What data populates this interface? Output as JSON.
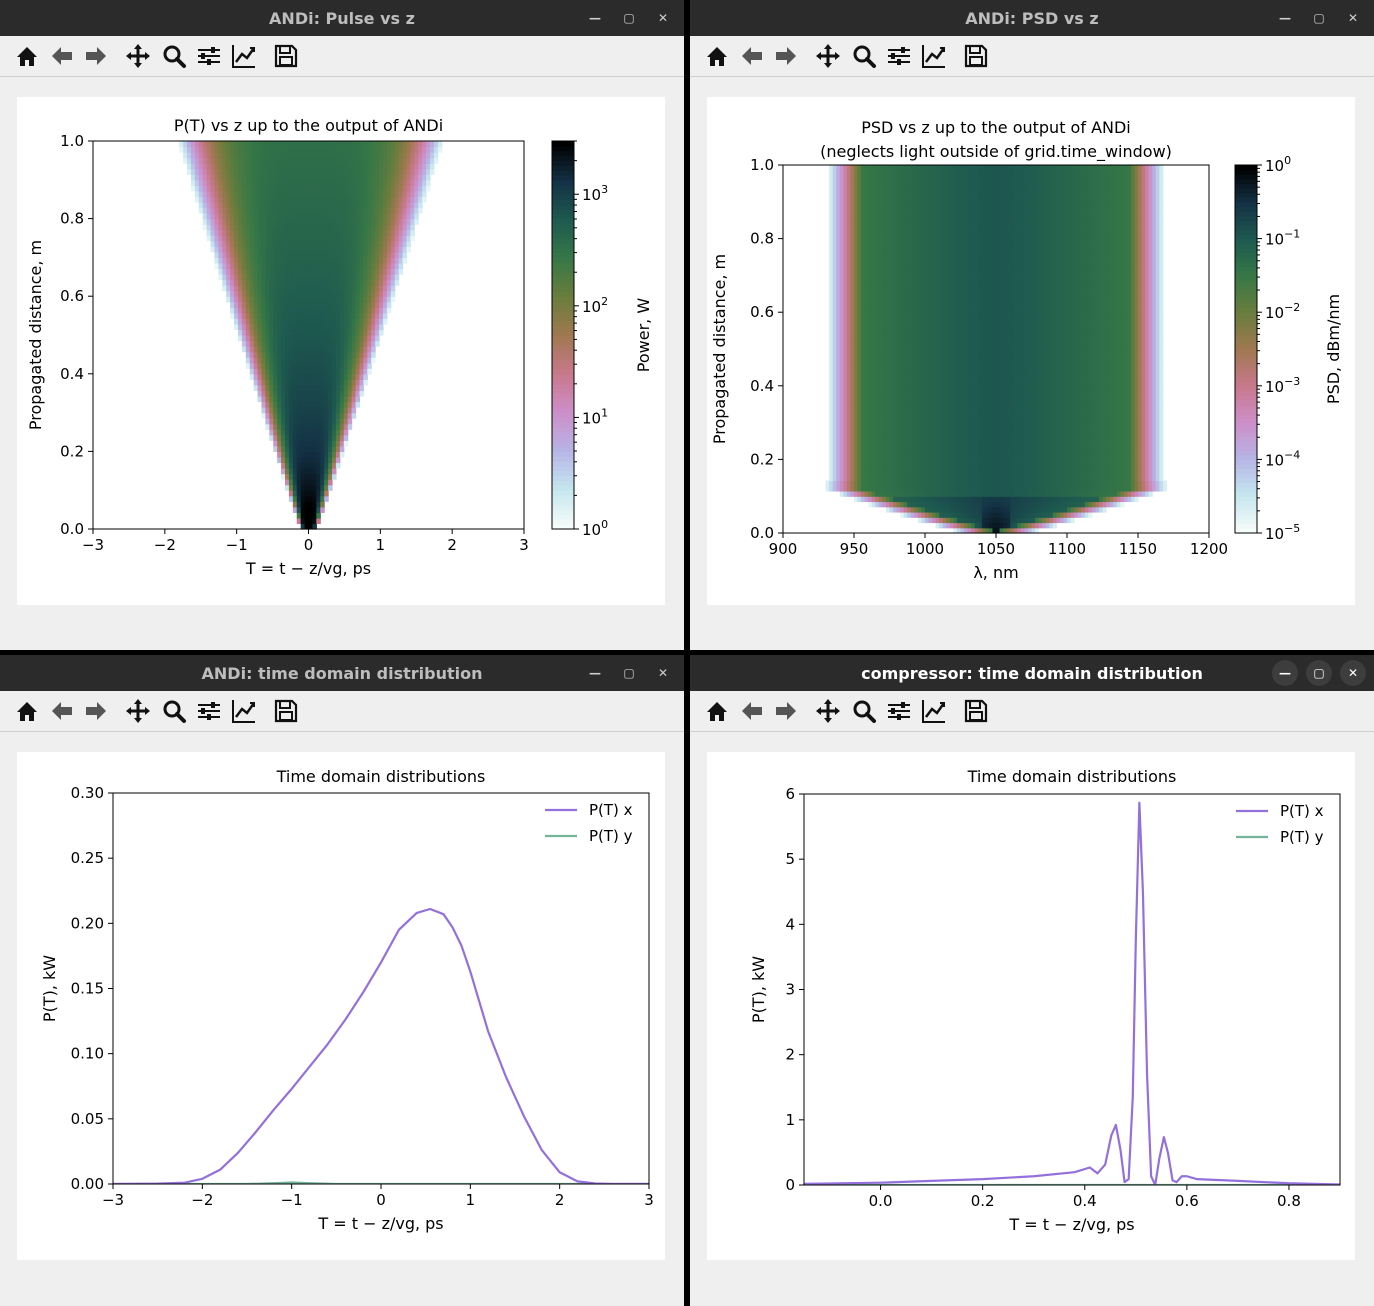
{
  "windows": [
    {
      "title": "ANDi: Pulse vs z",
      "active": false,
      "plot": {
        "type": "heatmap",
        "title": "P(T) vs z up to the output of ANDi",
        "xlabel": "T = t − z/vg, ps",
        "ylabel": "Propagated distance, m",
        "xlim": [
          -3,
          3
        ],
        "ylim": [
          0,
          1
        ],
        "xticks": [
          "−3",
          "−2",
          "−1",
          "0",
          "1",
          "2",
          "3"
        ],
        "yticks": [
          "0.0",
          "0.2",
          "0.4",
          "0.6",
          "0.8",
          "1.0"
        ],
        "colorbar": {
          "label": "Power, W",
          "scale": "log",
          "range": [
            1,
            3000
          ],
          "ticks": [
            "10^0",
            "10^1",
            "10^2",
            "10^3"
          ]
        }
      }
    },
    {
      "title": "ANDi: PSD vs z",
      "active": false,
      "plot": {
        "type": "heatmap",
        "title": "PSD vs z up to the output of ANDi",
        "subtitle": "(neglects light outside of grid.time_window)",
        "xlabel": "λ, nm",
        "ylabel": "Propagated distance, m",
        "xlim": [
          900,
          1200
        ],
        "ylim": [
          0,
          1
        ],
        "xticks": [
          "900",
          "950",
          "1000",
          "1050",
          "1100",
          "1150",
          "1200"
        ],
        "yticks": [
          "0.0",
          "0.2",
          "0.4",
          "0.6",
          "0.8",
          "1.0"
        ],
        "colorbar": {
          "label": "PSD, dBm/nm",
          "scale": "log",
          "range": [
            1e-05,
            1
          ],
          "ticks": [
            "10^0",
            "10^−1",
            "10^−2",
            "10^−3",
            "10^−4",
            "10^−5"
          ]
        }
      }
    },
    {
      "title": "ANDi: time domain distribution",
      "active": false,
      "plot": {
        "type": "line",
        "title": "Time domain distributions",
        "xlabel": "T = t − z/vg, ps",
        "ylabel": "P(T), kW",
        "xlim": [
          -3,
          3
        ],
        "ylim": [
          0,
          0.3
        ],
        "xticks": [
          "−3",
          "−2",
          "−1",
          "0",
          "1",
          "2",
          "3"
        ],
        "yticks": [
          "0.00",
          "0.05",
          "0.10",
          "0.15",
          "0.20",
          "0.25",
          "0.30"
        ],
        "legend": [
          "P(T) x",
          "P(T) y"
        ]
      }
    },
    {
      "title": "compressor: time domain distribution",
      "active": true,
      "plot": {
        "type": "line",
        "title": "Time domain distributions",
        "xlabel": "T = t − z/vg, ps",
        "ylabel": "P(T), kW",
        "xlim": [
          -0.15,
          0.9
        ],
        "ylim": [
          0,
          6.7
        ],
        "xticks": [
          "0.0",
          "0.2",
          "0.4",
          "0.6",
          "0.8"
        ],
        "yticks": [
          "0",
          "1",
          "2",
          "3",
          "4",
          "5",
          "6"
        ],
        "legend": [
          "P(T) x",
          "P(T) y"
        ]
      }
    }
  ],
  "chart_data": [
    {
      "type": "heatmap",
      "title": "P(T) vs z up to the output of ANDi",
      "xlabel": "T = t − z/vg, ps",
      "ylabel": "Propagated distance, m",
      "xlim": [
        -3,
        3
      ],
      "ylim": [
        0,
        1
      ],
      "note_values": "pulse width grows linearly with z; peak ~3000 W at z=0, half-width ~2 ps at z=1",
      "colorbar": {
        "label": "Power, W",
        "range": [
          1,
          3000
        ]
      }
    },
    {
      "type": "heatmap",
      "title": "PSD vs z up to the output of ANDi",
      "xlabel": "λ, nm",
      "ylabel": "Propagated distance, m",
      "xlim": [
        900,
        1200
      ],
      "ylim": [
        0,
        1
      ],
      "colorbar": {
        "label": "PSD, dBm/nm",
        "range": [
          1e-05,
          1
        ]
      }
    },
    {
      "type": "line",
      "title": "Time domain distributions",
      "xlabel": "T = t − z/vg, ps",
      "ylabel": "P(T), kW",
      "xlim": [
        -3,
        3
      ],
      "ylim": [
        0,
        0.3
      ],
      "series": [
        {
          "name": "P(T) x",
          "color": "#9370db",
          "x": [
            -3,
            -2.5,
            -2.2,
            -2.0,
            -1.8,
            -1.6,
            -1.4,
            -1.2,
            -1.0,
            -0.8,
            -0.6,
            -0.4,
            -0.2,
            0.0,
            0.2,
            0.4,
            0.55,
            0.7,
            0.8,
            0.9,
            1.0,
            1.1,
            1.2,
            1.4,
            1.6,
            1.8,
            2.0,
            2.2,
            2.4,
            2.6,
            3.0
          ],
          "y": [
            0,
            0.0003,
            0.001,
            0.004,
            0.011,
            0.024,
            0.04,
            0.057,
            0.073,
            0.09,
            0.107,
            0.126,
            0.147,
            0.17,
            0.195,
            0.208,
            0.211,
            0.207,
            0.197,
            0.183,
            0.163,
            0.14,
            0.117,
            0.082,
            0.052,
            0.026,
            0.009,
            0.002,
            0.0004,
            0,
            0
          ]
        },
        {
          "name": "P(T) y",
          "color": "#74b49b",
          "x": [
            -3,
            -1.5,
            -1.2,
            -1.0,
            -0.8,
            -0.5,
            0,
            3
          ],
          "y": [
            0,
            0,
            0.0006,
            0.0012,
            0.0006,
            0,
            0,
            0
          ]
        }
      ]
    },
    {
      "type": "line",
      "title": "Time domain distributions",
      "xlabel": "T = t − z/vg, ps",
      "ylabel": "P(T), kW",
      "xlim": [
        -0.15,
        0.9
      ],
      "ylim": [
        0,
        6.7
      ],
      "series": [
        {
          "name": "P(T) x",
          "color": "#9370db",
          "x": [
            -0.15,
            0.0,
            0.1,
            0.2,
            0.3,
            0.38,
            0.41,
            0.425,
            0.44,
            0.452,
            0.461,
            0.47,
            0.478,
            0.486,
            0.494,
            0.5,
            0.507,
            0.514,
            0.522,
            0.53,
            0.538,
            0.546,
            0.555,
            0.563,
            0.572,
            0.58,
            0.59,
            0.6,
            0.62,
            0.7,
            0.8,
            0.9
          ],
          "y": [
            0.02,
            0.04,
            0.07,
            0.1,
            0.15,
            0.22,
            0.3,
            0.2,
            0.35,
            0.85,
            1.03,
            0.6,
            0.05,
            0.1,
            1.5,
            4.2,
            6.55,
            5.0,
            1.9,
            0.15,
            0.0,
            0.45,
            0.82,
            0.55,
            0.08,
            0.05,
            0.15,
            0.15,
            0.1,
            0.07,
            0.03,
            0.01
          ]
        },
        {
          "name": "P(T) y",
          "color": "#74b49b",
          "x": [
            -0.15,
            0.9
          ],
          "y": [
            0,
            0
          ]
        }
      ]
    }
  ],
  "colors": {
    "titlebar": "#2b2b2b",
    "pane": "#efefef",
    "series_x": "#9370db",
    "series_y": "#74b49b"
  },
  "toolbar_icons": [
    "home-icon",
    "back-icon",
    "forward-icon",
    "pan-icon",
    "zoom-icon",
    "configure-subplots-icon",
    "edit-axis-icon",
    "save-icon"
  ]
}
